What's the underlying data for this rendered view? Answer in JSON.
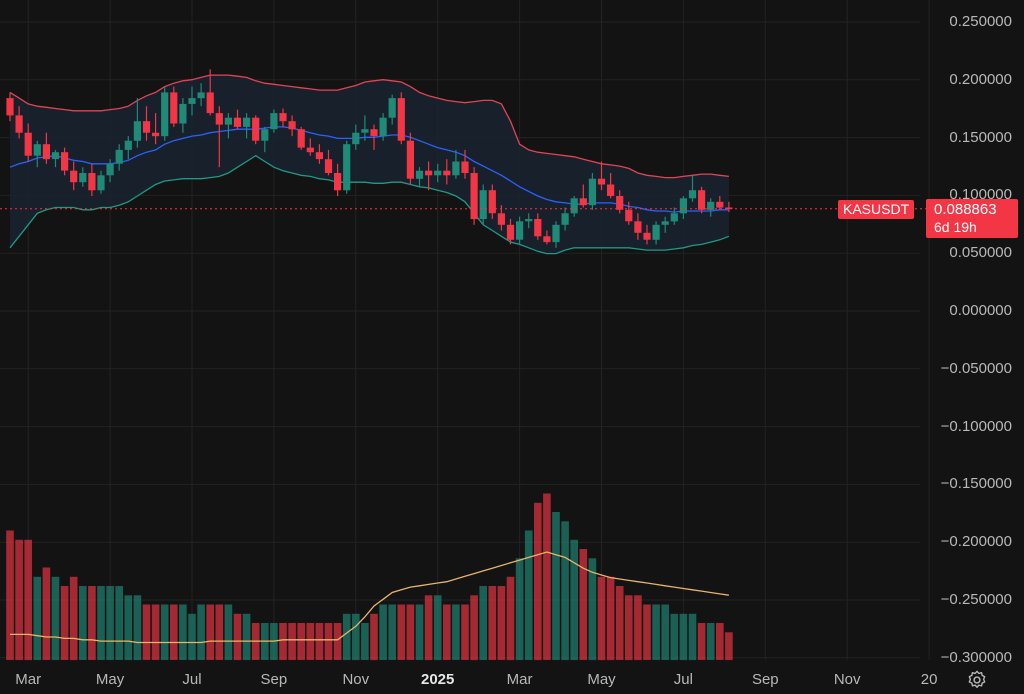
{
  "symbol": {
    "name": "KASUSDT",
    "price": "0.088863",
    "countdown": "6d 19h"
  },
  "colors": {
    "background": "#131313",
    "up": "#1f8a78",
    "down": "#f23645",
    "basis": "#2962ff",
    "upper_band": "#e04555",
    "lower_band": "#1f9a85",
    "band_fill": "#1a2330",
    "volume_ma": "#e8b46a",
    "grid": "#232323"
  },
  "settings_icon": "gear-icon",
  "chart_data": {
    "type": "candlestick",
    "interval": "weekly",
    "grid": true,
    "y_axis": {
      "position": "right",
      "range": [
        -0.3,
        0.25
      ],
      "ticks": [
        "0.250000",
        "0.200000",
        "0.150000",
        "0.100000",
        "0.050000",
        "0.000000",
        "−0.050000",
        "−0.100000",
        "−0.150000",
        "−0.200000",
        "−0.250000",
        "−0.300000"
      ]
    },
    "x_axis": {
      "ticks": [
        {
          "label": "Mar",
          "week": 2,
          "bold": false
        },
        {
          "label": "May",
          "week": 11,
          "bold": false
        },
        {
          "label": "Jul",
          "week": 20,
          "bold": false
        },
        {
          "label": "Sep",
          "week": 29,
          "bold": false
        },
        {
          "label": "Nov",
          "week": 38,
          "bold": false
        },
        {
          "label": "2025",
          "week": 47,
          "bold": true
        },
        {
          "label": "Mar",
          "week": 56,
          "bold": false
        },
        {
          "label": "May",
          "week": 65,
          "bold": false
        },
        {
          "label": "Jul",
          "week": 74,
          "bold": false
        },
        {
          "label": "Sep",
          "week": 83,
          "bold": false
        },
        {
          "label": "Nov",
          "week": 92,
          "bold": false
        },
        {
          "label": "20",
          "week": 101,
          "bold": false
        }
      ]
    },
    "ohlc": [
      [
        0.185,
        0.19,
        0.165,
        0.17
      ],
      [
        0.17,
        0.178,
        0.15,
        0.155
      ],
      [
        0.155,
        0.163,
        0.13,
        0.135
      ],
      [
        0.135,
        0.148,
        0.125,
        0.145
      ],
      [
        0.145,
        0.155,
        0.128,
        0.132
      ],
      [
        0.132,
        0.14,
        0.125,
        0.138
      ],
      [
        0.138,
        0.142,
        0.118,
        0.122
      ],
      [
        0.122,
        0.13,
        0.105,
        0.112
      ],
      [
        0.112,
        0.125,
        0.108,
        0.12
      ],
      [
        0.12,
        0.128,
        0.1,
        0.105
      ],
      [
        0.105,
        0.122,
        0.102,
        0.118
      ],
      [
        0.118,
        0.132,
        0.112,
        0.128
      ],
      [
        0.128,
        0.145,
        0.122,
        0.14
      ],
      [
        0.14,
        0.152,
        0.132,
        0.148
      ],
      [
        0.148,
        0.185,
        0.142,
        0.165
      ],
      [
        0.165,
        0.178,
        0.148,
        0.155
      ],
      [
        0.155,
        0.172,
        0.145,
        0.152
      ],
      [
        0.152,
        0.195,
        0.148,
        0.19
      ],
      [
        0.19,
        0.195,
        0.16,
        0.163
      ],
      [
        0.163,
        0.185,
        0.155,
        0.18
      ],
      [
        0.18,
        0.195,
        0.17,
        0.185
      ],
      [
        0.185,
        0.198,
        0.178,
        0.19
      ],
      [
        0.19,
        0.21,
        0.17,
        0.172
      ],
      [
        0.172,
        0.178,
        0.125,
        0.162
      ],
      [
        0.162,
        0.172,
        0.15,
        0.168
      ],
      [
        0.168,
        0.175,
        0.158,
        0.16
      ],
      [
        0.16,
        0.172,
        0.15,
        0.168
      ],
      [
        0.168,
        0.17,
        0.145,
        0.148
      ],
      [
        0.148,
        0.16,
        0.138,
        0.158
      ],
      [
        0.158,
        0.175,
        0.155,
        0.172
      ],
      [
        0.172,
        0.176,
        0.16,
        0.165
      ],
      [
        0.165,
        0.17,
        0.152,
        0.158
      ],
      [
        0.158,
        0.16,
        0.14,
        0.142
      ],
      [
        0.142,
        0.15,
        0.135,
        0.138
      ],
      [
        0.138,
        0.145,
        0.128,
        0.132
      ],
      [
        0.132,
        0.14,
        0.118,
        0.12
      ],
      [
        0.12,
        0.128,
        0.1,
        0.105
      ],
      [
        0.105,
        0.148,
        0.102,
        0.145
      ],
      [
        0.145,
        0.162,
        0.14,
        0.155
      ],
      [
        0.155,
        0.17,
        0.148,
        0.158
      ],
      [
        0.158,
        0.162,
        0.14,
        0.152
      ],
      [
        0.152,
        0.172,
        0.148,
        0.168
      ],
      [
        0.168,
        0.188,
        0.162,
        0.185
      ],
      [
        0.185,
        0.19,
        0.145,
        0.148
      ],
      [
        0.148,
        0.155,
        0.11,
        0.115
      ],
      [
        0.115,
        0.125,
        0.108,
        0.122
      ],
      [
        0.122,
        0.13,
        0.105,
        0.118
      ],
      [
        0.118,
        0.128,
        0.112,
        0.122
      ],
      [
        0.122,
        0.132,
        0.11,
        0.118
      ],
      [
        0.118,
        0.14,
        0.115,
        0.13
      ],
      [
        0.13,
        0.14,
        0.115,
        0.12
      ],
      [
        0.12,
        0.125,
        0.075,
        0.08
      ],
      [
        0.08,
        0.11,
        0.075,
        0.105
      ],
      [
        0.105,
        0.11,
        0.08,
        0.085
      ],
      [
        0.085,
        0.092,
        0.07,
        0.075
      ],
      [
        0.075,
        0.08,
        0.058,
        0.062
      ],
      [
        0.062,
        0.082,
        0.058,
        0.078
      ],
      [
        0.078,
        0.085,
        0.072,
        0.08
      ],
      [
        0.08,
        0.085,
        0.062,
        0.065
      ],
      [
        0.065,
        0.07,
        0.058,
        0.06
      ],
      [
        0.06,
        0.078,
        0.055,
        0.075
      ],
      [
        0.075,
        0.09,
        0.07,
        0.085
      ],
      [
        0.085,
        0.1,
        0.082,
        0.098
      ],
      [
        0.098,
        0.11,
        0.09,
        0.092
      ],
      [
        0.092,
        0.12,
        0.088,
        0.115
      ],
      [
        0.115,
        0.13,
        0.105,
        0.11
      ],
      [
        0.11,
        0.12,
        0.098,
        0.1
      ],
      [
        0.1,
        0.105,
        0.085,
        0.088
      ],
      [
        0.088,
        0.095,
        0.075,
        0.078
      ],
      [
        0.078,
        0.085,
        0.062,
        0.068
      ],
      [
        0.068,
        0.075,
        0.058,
        0.062
      ],
      [
        0.062,
        0.078,
        0.058,
        0.075
      ],
      [
        0.075,
        0.082,
        0.068,
        0.078
      ],
      [
        0.078,
        0.09,
        0.075,
        0.085
      ],
      [
        0.085,
        0.1,
        0.08,
        0.098
      ],
      [
        0.098,
        0.118,
        0.095,
        0.105
      ],
      [
        0.105,
        0.108,
        0.085,
        0.088
      ],
      [
        0.088,
        0.098,
        0.082,
        0.095
      ],
      [
        0.095,
        0.1,
        0.088,
        0.09
      ],
      [
        0.09,
        0.095,
        0.086,
        0.088863
      ]
    ],
    "bollinger": {
      "upper": [
        0.19,
        0.185,
        0.18,
        0.178,
        0.177,
        0.176,
        0.175,
        0.174,
        0.174,
        0.174,
        0.174,
        0.175,
        0.176,
        0.178,
        0.183,
        0.187,
        0.19,
        0.195,
        0.198,
        0.2,
        0.201,
        0.203,
        0.205,
        0.205,
        0.205,
        0.204,
        0.203,
        0.2,
        0.198,
        0.197,
        0.196,
        0.195,
        0.194,
        0.193,
        0.192,
        0.192,
        0.192,
        0.194,
        0.196,
        0.199,
        0.2,
        0.201,
        0.2,
        0.199,
        0.195,
        0.19,
        0.187,
        0.185,
        0.183,
        0.182,
        0.181,
        0.182,
        0.183,
        0.183,
        0.18,
        0.165,
        0.145,
        0.14,
        0.138,
        0.137,
        0.136,
        0.135,
        0.134,
        0.132,
        0.13,
        0.128,
        0.127,
        0.126,
        0.124,
        0.12,
        0.118,
        0.117,
        0.116,
        0.116,
        0.117,
        0.118,
        0.119,
        0.119,
        0.118,
        0.117
      ],
      "basis": [
        0.125,
        0.128,
        0.13,
        0.133,
        0.134,
        0.135,
        0.133,
        0.131,
        0.13,
        0.128,
        0.128,
        0.128,
        0.129,
        0.131,
        0.135,
        0.138,
        0.14,
        0.145,
        0.148,
        0.15,
        0.152,
        0.153,
        0.155,
        0.156,
        0.157,
        0.158,
        0.158,
        0.158,
        0.159,
        0.16,
        0.16,
        0.159,
        0.157,
        0.155,
        0.153,
        0.152,
        0.15,
        0.15,
        0.15,
        0.151,
        0.151,
        0.152,
        0.153,
        0.153,
        0.151,
        0.148,
        0.145,
        0.142,
        0.14,
        0.138,
        0.135,
        0.13,
        0.126,
        0.122,
        0.118,
        0.113,
        0.108,
        0.104,
        0.1,
        0.097,
        0.095,
        0.094,
        0.093,
        0.093,
        0.094,
        0.094,
        0.094,
        0.093,
        0.091,
        0.09,
        0.088,
        0.087,
        0.087,
        0.086,
        0.087,
        0.087,
        0.087,
        0.087,
        0.088,
        0.088
      ],
      "lower": [
        0.055,
        0.065,
        0.075,
        0.085,
        0.088,
        0.09,
        0.09,
        0.09,
        0.088,
        0.088,
        0.09,
        0.09,
        0.092,
        0.095,
        0.1,
        0.105,
        0.11,
        0.113,
        0.114,
        0.115,
        0.115,
        0.115,
        0.116,
        0.117,
        0.12,
        0.125,
        0.13,
        0.135,
        0.13,
        0.125,
        0.122,
        0.12,
        0.118,
        0.117,
        0.115,
        0.114,
        0.112,
        0.112,
        0.112,
        0.112,
        0.111,
        0.111,
        0.112,
        0.112,
        0.11,
        0.108,
        0.107,
        0.105,
        0.103,
        0.1,
        0.095,
        0.085,
        0.075,
        0.07,
        0.065,
        0.06,
        0.058,
        0.055,
        0.052,
        0.05,
        0.05,
        0.053,
        0.055,
        0.055,
        0.055,
        0.055,
        0.055,
        0.055,
        0.055,
        0.054,
        0.053,
        0.053,
        0.053,
        0.054,
        0.055,
        0.057,
        0.058,
        0.06,
        0.062,
        0.065
      ]
    },
    "volume": {
      "range_max": 1.0,
      "values": [
        0.14,
        0.13,
        0.13,
        0.09,
        0.1,
        0.09,
        0.08,
        0.09,
        0.08,
        0.08,
        0.08,
        0.08,
        0.08,
        0.07,
        0.07,
        0.06,
        0.06,
        0.06,
        0.06,
        0.06,
        0.05,
        0.06,
        0.06,
        0.06,
        0.06,
        0.05,
        0.05,
        0.04,
        0.04,
        0.04,
        0.04,
        0.04,
        0.04,
        0.04,
        0.04,
        0.04,
        0.04,
        0.05,
        0.05,
        0.04,
        0.05,
        0.06,
        0.06,
        0.06,
        0.06,
        0.06,
        0.07,
        0.07,
        0.06,
        0.06,
        0.06,
        0.07,
        0.08,
        0.08,
        0.08,
        0.09,
        0.11,
        0.14,
        0.17,
        0.18,
        0.16,
        0.15,
        0.13,
        0.12,
        0.11,
        0.09,
        0.09,
        0.08,
        0.07,
        0.07,
        0.06,
        0.06,
        0.06,
        0.05,
        0.05,
        0.05,
        0.04,
        0.04,
        0.04,
        0.03
      ],
      "ma": [
        0.19,
        0.19,
        0.19,
        0.18,
        0.17,
        0.17,
        0.16,
        0.16,
        0.15,
        0.15,
        0.14,
        0.14,
        0.14,
        0.14,
        0.13,
        0.13,
        0.13,
        0.13,
        0.13,
        0.13,
        0.13,
        0.13,
        0.14,
        0.14,
        0.14,
        0.14,
        0.14,
        0.14,
        0.14,
        0.14,
        0.15,
        0.15,
        0.15,
        0.15,
        0.15,
        0.15,
        0.15,
        0.2,
        0.25,
        0.32,
        0.4,
        0.45,
        0.5,
        0.52,
        0.54,
        0.55,
        0.56,
        0.57,
        0.58,
        0.6,
        0.62,
        0.64,
        0.66,
        0.68,
        0.7,
        0.72,
        0.74,
        0.76,
        0.78,
        0.8,
        0.78,
        0.76,
        0.72,
        0.68,
        0.65,
        0.63,
        0.61,
        0.6,
        0.59,
        0.58,
        0.57,
        0.56,
        0.55,
        0.54,
        0.53,
        0.52,
        0.51,
        0.5,
        0.49,
        0.48
      ]
    }
  }
}
